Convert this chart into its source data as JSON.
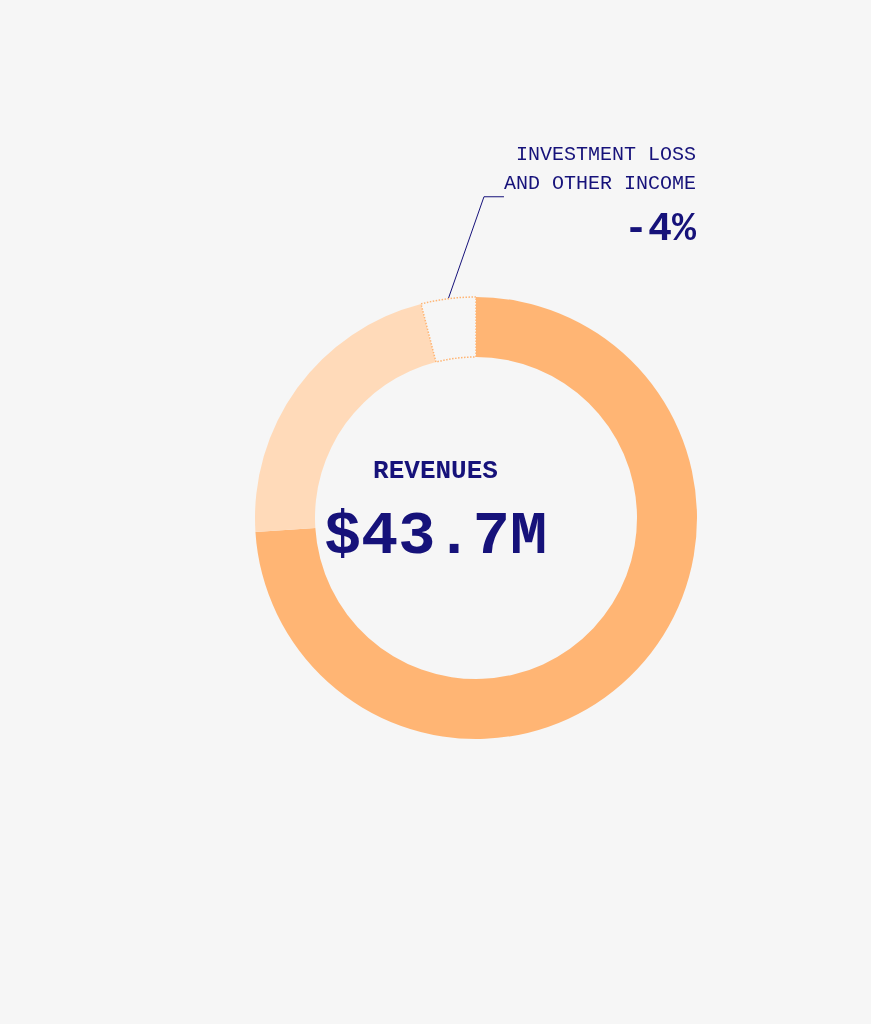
{
  "chart_data": {
    "type": "donut",
    "categories": [
      null,
      null,
      "INVESTMENT LOSS\nAND OTHER INCOME"
    ],
    "values": [
      74,
      22,
      4
    ],
    "colors": [
      "#ffb574",
      "#ffdab9",
      "#ffb574"
    ],
    "annotations": [
      "REVENUES",
      "$43.7M",
      "-4%"
    ],
    "legend": false
  }
}
